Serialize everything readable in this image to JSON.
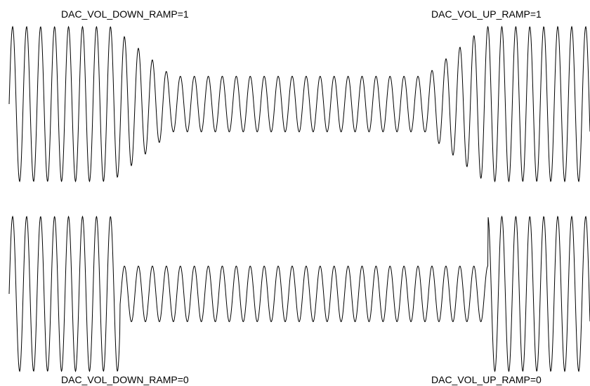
{
  "colors": {
    "waveform": "#000000",
    "background": "#ffffff",
    "text": "#000000"
  },
  "panels": [
    {
      "id": "ramp-on",
      "down_label": "DAC_VOL_DOWN_RAMP=1",
      "up_label": "DAC_VOL_UP_RAMP=1",
      "high_amplitude": 1.0,
      "low_amplitude": 0.36,
      "transition": "gradual"
    },
    {
      "id": "ramp-off",
      "down_label": "DAC_VOL_DOWN_RAMP=0",
      "up_label": "DAC_VOL_UP_RAMP=0",
      "high_amplitude": 1.0,
      "low_amplitude": 0.36,
      "transition": "step"
    }
  ]
}
